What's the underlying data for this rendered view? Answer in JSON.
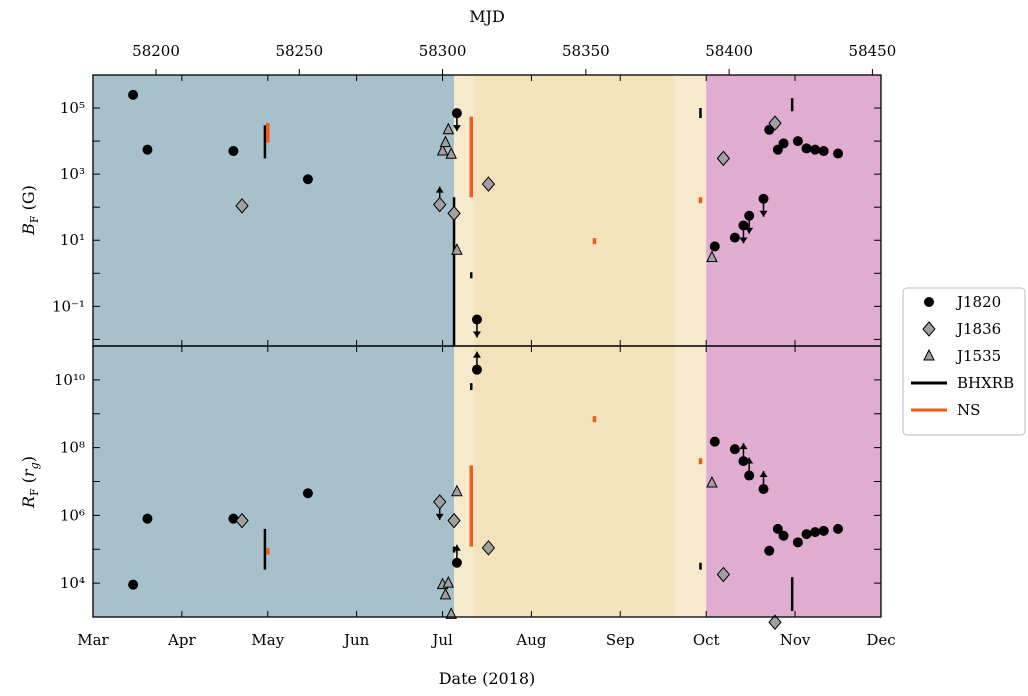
{
  "chart_data": {
    "type": "scatter",
    "xlabel": "Date (2018)",
    "top_xlabel": "MJD",
    "x_range": [
      "2018-03-01",
      "2018-12-01"
    ],
    "month_ticks": [
      {
        "label": "Mar",
        "date": "2018-03-01"
      },
      {
        "label": "Apr",
        "date": "2018-04-01"
      },
      {
        "label": "May",
        "date": "2018-05-01"
      },
      {
        "label": "Jun",
        "date": "2018-06-01"
      },
      {
        "label": "Jul",
        "date": "2018-07-01"
      },
      {
        "label": "Aug",
        "date": "2018-08-01"
      },
      {
        "label": "Sep",
        "date": "2018-09-01"
      },
      {
        "label": "Oct",
        "date": "2018-10-01"
      },
      {
        "label": "Nov",
        "date": "2018-11-01"
      },
      {
        "label": "Dec",
        "date": "2018-12-01"
      }
    ],
    "mjd_ticks": [
      58200,
      58250,
      58300,
      58350,
      58400,
      58450
    ],
    "state_bands": [
      {
        "start": "2018-03-01",
        "end": "2018-07-05",
        "color": "#a7c1cc"
      },
      {
        "start": "2018-07-05",
        "end": "2018-07-12",
        "color": "#f7e9cc"
      },
      {
        "start": "2018-07-12",
        "end": "2018-09-20",
        "color": "#f4e2bb"
      },
      {
        "start": "2018-09-20",
        "end": "2018-10-01",
        "color": "#f7e9cc"
      },
      {
        "start": "2018-10-01",
        "end": "2018-12-01",
        "color": "#e0acd0"
      }
    ],
    "legend": {
      "placement": "right",
      "entries": [
        {
          "label": "J1820",
          "marker": "circle"
        },
        {
          "label": "J1836",
          "marker": "diamond"
        },
        {
          "label": "J1535",
          "marker": "triangle"
        },
        {
          "label": "BHXRB",
          "marker": "line",
          "color": "#000000"
        },
        {
          "label": "NS",
          "marker": "line",
          "color": "#f05a1a"
        }
      ]
    },
    "panels": [
      {
        "id": "bf",
        "ylabel": "B_F (G)",
        "yscale": "log",
        "ylim_exponents": [
          -2.2,
          6.0
        ],
        "yticks": [
          {
            "exp": -1,
            "label": "10⁻¹"
          },
          {
            "exp": 1,
            "label": "10¹"
          },
          {
            "exp": 3,
            "label": "10³"
          },
          {
            "exp": 5,
            "label": "10⁵"
          }
        ],
        "series": [
          {
            "name": "J1820",
            "marker": "circle",
            "points": [
              {
                "x": "2018-03-15",
                "y": 250000.0
              },
              {
                "x": "2018-03-20",
                "y": 5500.0
              },
              {
                "x": "2018-04-19",
                "y": 5000.0
              },
              {
                "x": "2018-05-15",
                "y": 700
              },
              {
                "x": "2018-07-06",
                "y": 70000.0,
                "limit": "upper"
              },
              {
                "x": "2018-07-13",
                "y": 0.04,
                "limit": "upper"
              },
              {
                "x": "2018-10-04",
                "y": 6.5
              },
              {
                "x": "2018-10-11",
                "y": 12
              },
              {
                "x": "2018-10-14",
                "y": 28,
                "limit": "upper"
              },
              {
                "x": "2018-10-16",
                "y": 55,
                "limit": "upper"
              },
              {
                "x": "2018-10-21",
                "y": 180,
                "limit": "upper"
              },
              {
                "x": "2018-10-23",
                "y": 22000.0
              },
              {
                "x": "2018-10-26",
                "y": 5500.0
              },
              {
                "x": "2018-10-28",
                "y": 8500.0
              },
              {
                "x": "2018-11-02",
                "y": 10000.0
              },
              {
                "x": "2018-11-05",
                "y": 6000.0
              },
              {
                "x": "2018-11-08",
                "y": 5500.0
              },
              {
                "x": "2018-11-11",
                "y": 5000.0
              },
              {
                "x": "2018-11-16",
                "y": 4200.0
              }
            ]
          },
          {
            "name": "J1836",
            "marker": "diamond",
            "points": [
              {
                "x": "2018-04-22",
                "y": 110
              },
              {
                "x": "2018-06-30",
                "y": 120,
                "limit": "lower"
              },
              {
                "x": "2018-07-05",
                "y": 65
              },
              {
                "x": "2018-07-17",
                "y": 500
              },
              {
                "x": "2018-10-07",
                "y": 3000.0
              },
              {
                "x": "2018-10-25",
                "y": 35000.0
              }
            ]
          },
          {
            "name": "J1535",
            "marker": "triangle",
            "points": [
              {
                "x": "2018-07-01",
                "y": 5000.0
              },
              {
                "x": "2018-07-02",
                "y": 9000.0
              },
              {
                "x": "2018-07-03",
                "y": 22000.0
              },
              {
                "x": "2018-07-04",
                "y": 4000.0
              },
              {
                "x": "2018-07-06",
                "y": 5.0
              },
              {
                "x": "2018-10-03",
                "y": 3.0
              }
            ]
          }
        ],
        "ranges": [
          {
            "type": "BHXRB",
            "x": "2018-04-30",
            "ymin": 3000.0,
            "ymax": 30000.0
          },
          {
            "type": "NS",
            "x": "2018-05-01",
            "ymin": 9000.0,
            "ymax": 35000.0
          },
          {
            "type": "BHXRB",
            "x": "2018-07-05",
            "ymin": 0.006,
            "ymax": 200
          },
          {
            "type": "NS",
            "x": "2018-07-11",
            "ymin": 200,
            "ymax": 55000.0
          },
          {
            "type": "BHXRB",
            "x": "2018-07-11",
            "ymin": 0.8,
            "ymax": 0.95
          },
          {
            "type": "NS",
            "x": "2018-08-23",
            "ymin": 8.0,
            "ymax": 11.0
          },
          {
            "type": "BHXRB",
            "x": "2018-09-29",
            "ymin": 50000.0,
            "ymax": 100000.0
          },
          {
            "type": "NS",
            "x": "2018-09-29",
            "ymin": 155,
            "ymax": 170
          },
          {
            "type": "BHXRB",
            "x": "2018-10-31",
            "ymin": 80000.0,
            "ymax": 200000.0
          }
        ]
      },
      {
        "id": "rf",
        "ylabel": "R_F (r_g)",
        "yscale": "log",
        "ylim_exponents": [
          3.0,
          11.0
        ],
        "yticks": [
          {
            "exp": 4,
            "label": "10⁴"
          },
          {
            "exp": 6,
            "label": "10⁶"
          },
          {
            "exp": 8,
            "label": "10⁸"
          },
          {
            "exp": 10,
            "label": "10¹⁰"
          }
        ],
        "series": [
          {
            "name": "J1820",
            "marker": "circle",
            "points": [
              {
                "x": "2018-03-15",
                "y": 9000.0
              },
              {
                "x": "2018-03-20",
                "y": 800000.0
              },
              {
                "x": "2018-04-19",
                "y": 800000.0
              },
              {
                "x": "2018-05-15",
                "y": 4500000.0
              },
              {
                "x": "2018-07-06",
                "y": 40000.0,
                "limit": "lower"
              },
              {
                "x": "2018-07-13",
                "y": 20000000000.0,
                "limit": "lower"
              },
              {
                "x": "2018-10-04",
                "y": 150000000.0
              },
              {
                "x": "2018-10-11",
                "y": 90000000.0
              },
              {
                "x": "2018-10-14",
                "y": 40000000.0,
                "limit": "lower"
              },
              {
                "x": "2018-10-16",
                "y": 15000000.0,
                "limit": "lower"
              },
              {
                "x": "2018-10-21",
                "y": 6000000.0,
                "limit": "lower"
              },
              {
                "x": "2018-10-23",
                "y": 90000.0
              },
              {
                "x": "2018-10-26",
                "y": 400000.0
              },
              {
                "x": "2018-10-28",
                "y": 250000.0
              },
              {
                "x": "2018-11-02",
                "y": 160000.0
              },
              {
                "x": "2018-11-05",
                "y": 280000.0
              },
              {
                "x": "2018-11-08",
                "y": 320000.0
              },
              {
                "x": "2018-11-11",
                "y": 350000.0
              },
              {
                "x": "2018-11-16",
                "y": 400000.0
              }
            ]
          },
          {
            "name": "J1836",
            "marker": "diamond",
            "points": [
              {
                "x": "2018-04-22",
                "y": 700000.0
              },
              {
                "x": "2018-06-30",
                "y": 2500000.0,
                "limit": "upper"
              },
              {
                "x": "2018-07-05",
                "y": 700000.0
              },
              {
                "x": "2018-07-17",
                "y": 110000.0
              },
              {
                "x": "2018-10-07",
                "y": 18000.0
              },
              {
                "x": "2018-10-25",
                "y": 700
              }
            ]
          },
          {
            "name": "J1535",
            "marker": "triangle",
            "points": [
              {
                "x": "2018-07-01",
                "y": 9000.0
              },
              {
                "x": "2018-07-02",
                "y": 4500.0
              },
              {
                "x": "2018-07-03",
                "y": 10000.0
              },
              {
                "x": "2018-07-04",
                "y": 1200.0
              },
              {
                "x": "2018-07-06",
                "y": 5000000.0
              },
              {
                "x": "2018-10-03",
                "y": 9000000.0
              }
            ]
          }
        ],
        "ranges": [
          {
            "type": "BHXRB",
            "x": "2018-04-30",
            "ymin": 25000.0,
            "ymax": 400000.0
          },
          {
            "type": "NS",
            "x": "2018-05-01",
            "ymin": 70000.0,
            "ymax": 110000.0
          },
          {
            "type": "BHXRB",
            "x": "2018-07-05",
            "ymin": 80000.0,
            "ymax": 120000.0
          },
          {
            "type": "NS",
            "x": "2018-07-11",
            "ymin": 120000.0,
            "ymax": 30000000.0
          },
          {
            "type": "BHXRB",
            "x": "2018-07-11",
            "ymin": 5000000000.0,
            "ymax": 8000000000.0
          },
          {
            "type": "NS",
            "x": "2018-08-23",
            "ymin": 600000000.0,
            "ymax": 800000000.0
          },
          {
            "type": "BHXRB",
            "x": "2018-09-29",
            "ymin": 25000.0,
            "ymax": 40000.0
          },
          {
            "type": "NS",
            "x": "2018-09-29",
            "ymin": 35000000.0,
            "ymax": 45000000.0
          },
          {
            "type": "BHXRB",
            "x": "2018-10-31",
            "ymin": 1500.0,
            "ymax": 15000.0
          }
        ]
      }
    ]
  }
}
